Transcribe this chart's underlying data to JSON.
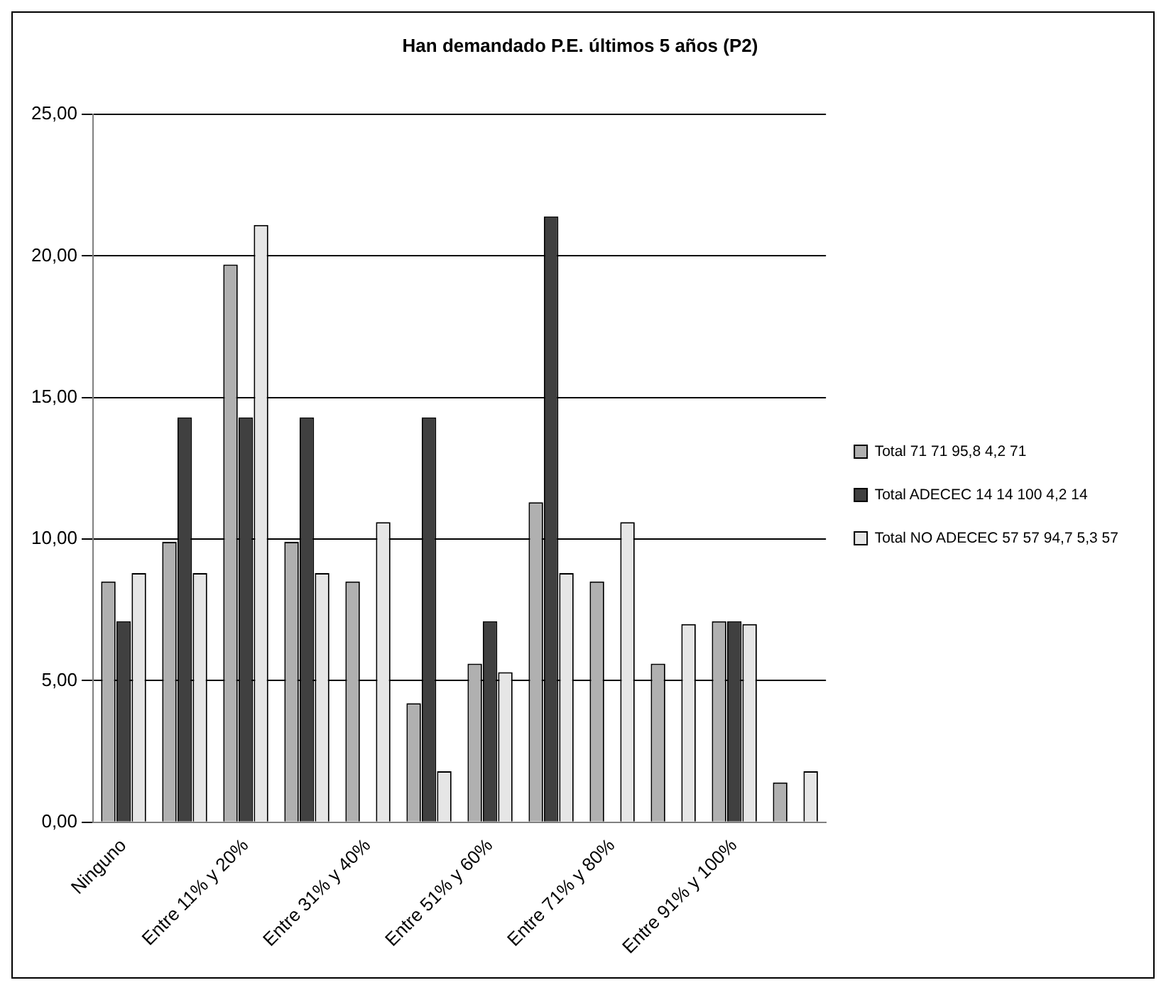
{
  "chart_data": {
    "type": "bar",
    "title": "Han demandado P.E. últimos 5 años (P2)",
    "categories": [
      "Ninguno",
      null,
      "Entre 11% y 20%",
      null,
      "Entre 31% y 40%",
      null,
      "Entre 51% y 60%",
      null,
      "Entre 71% y 80%",
      null,
      "Entre 91% y 100%",
      null
    ],
    "series": [
      {
        "name": "Total 71 71 95,8 4,2 71",
        "color": "#b0b0b0",
        "values": [
          8.5,
          9.9,
          19.7,
          9.9,
          8.5,
          4.2,
          5.6,
          11.3,
          8.5,
          5.6,
          7.1,
          1.4
        ]
      },
      {
        "name": "Total ADECEC 14 14 100 4,2 14",
        "color": "#404040",
        "values": [
          7.1,
          14.3,
          14.3,
          14.3,
          0,
          14.3,
          7.1,
          21.4,
          0,
          0,
          7.1,
          0
        ]
      },
      {
        "name": "Total NO ADECEC 57 57 94,7 5,3 57",
        "color": "#e6e6e6",
        "values": [
          8.8,
          8.8,
          21.1,
          8.8,
          10.6,
          1.8,
          5.3,
          8.8,
          10.6,
          7.0,
          7.0,
          1.8
        ]
      }
    ],
    "ylim": [
      0,
      25
    ],
    "yticks": [
      {
        "value": 0,
        "label": "0,00"
      },
      {
        "value": 5,
        "label": "5,00"
      },
      {
        "value": 10,
        "label": "10,00"
      },
      {
        "value": 15,
        "label": "15,00"
      },
      {
        "value": 20,
        "label": "20,00"
      },
      {
        "value": 25,
        "label": "25,00"
      }
    ],
    "grid": "y",
    "legend": "right"
  }
}
